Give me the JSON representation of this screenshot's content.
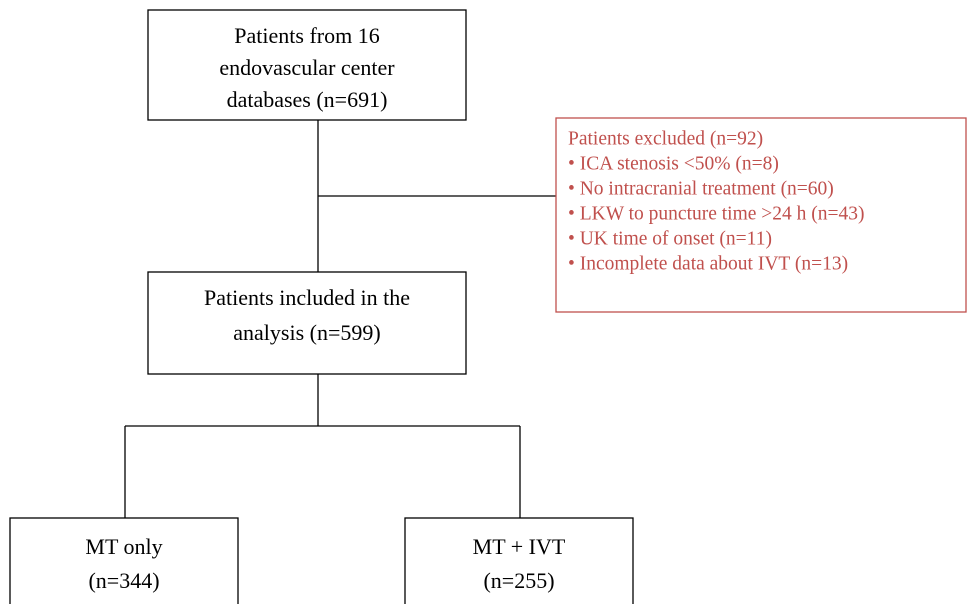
{
  "nodes": [
    {
      "lines": [
        "Patients from 16",
        "endovascular center",
        "databases (n=691)"
      ]
    },
    {
      "lines": [
        "Patients included in the",
        "analysis (n=599)"
      ]
    },
    {
      "lines": [
        "MT only",
        "(n=344)"
      ]
    },
    {
      "lines": [
        "MT + IVT",
        "(n=255)"
      ]
    }
  ],
  "exclusion": {
    "title": "Patients excluded (n=92)",
    "items": [
      "• ICA stenosis <50% (n=8)",
      "• No intracranial treatment (n=60)",
      "• LKW to puncture time >24 h (n=43)",
      "• UK time of onset (n=11)",
      "• Incomplete data about IVT (n=13)"
    ]
  }
}
